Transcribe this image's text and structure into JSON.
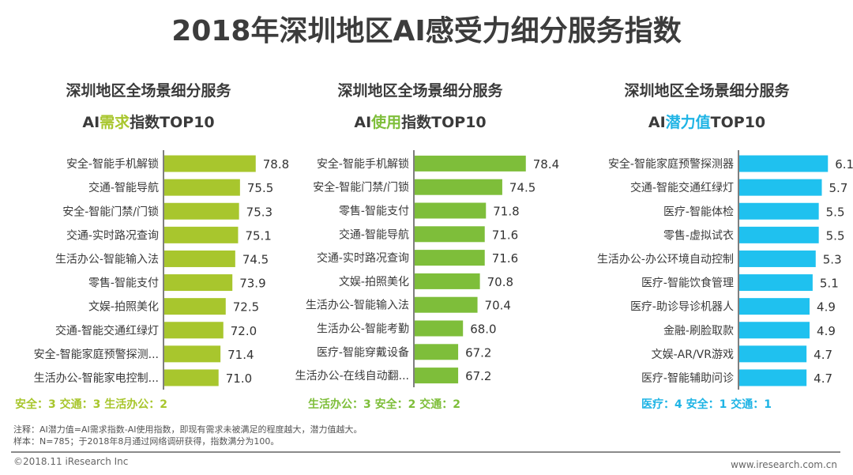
{
  "page": {
    "title": "2018年深圳地区AI感受力细分服务指数",
    "note_line1": "注释：AI潜力值=AI需求指数-AI使用指数，即现有需求未被满足的程度越大，潜力值越大。",
    "note_line2": "样本：N=785；于2018年8月通过网络调研获得，指数满分为100。",
    "copyright": "©2018.11 iResearch Inc",
    "website": "www.iresearch.com.cn"
  },
  "panels": [
    {
      "title_line1": "深圳地区全场景细分服务",
      "title_prefix": "AI",
      "title_highlight": "需求",
      "title_suffix": "指数TOP10",
      "summary": "安全：3  交通：3 生活办公：2",
      "color": "#a8c62d"
    },
    {
      "title_line1": "深圳地区全场景细分服务",
      "title_prefix": "AI",
      "title_highlight": "使用",
      "title_suffix": "指数TOP10",
      "summary": "生活办公：3  安全：2 交通：2",
      "color": "#7ebe3a"
    },
    {
      "title_line1": "深圳地区全场景细分服务",
      "title_prefix": "AI",
      "title_highlight": "潜力值",
      "title_suffix": "TOP10",
      "summary": "医疗：4  安全：1 交通：1",
      "color": "#1fc1ef"
    }
  ],
  "chart_data": [
    {
      "type": "bar",
      "orientation": "horizontal",
      "title": "深圳地区全场景细分服务 AI需求指数TOP10",
      "categories": [
        "安全-智能手机解锁",
        "交通-智能导航",
        "安全-智能门禁/门锁",
        "交通-实时路况查询",
        "生活办公-智能输入法",
        "零售-智能支付",
        "文娱-拍照美化",
        "交通-智能交通红绿灯",
        "安全-智能家庭预警探测...",
        "生活办公-智能家电控制..."
      ],
      "values": [
        78.8,
        75.5,
        75.3,
        75.1,
        74.5,
        73.9,
        72.5,
        72.0,
        71.4,
        71.0
      ],
      "value_labels": [
        "78.8",
        "75.5",
        "75.3",
        "75.1",
        "74.5",
        "73.9",
        "72.5",
        "72.0",
        "71.4",
        "71.0"
      ],
      "xlim": [
        59.6,
        80
      ],
      "grid": false,
      "xlabel": "",
      "ylabel": ""
    },
    {
      "type": "bar",
      "orientation": "horizontal",
      "title": "深圳地区全场景细分服务 AI使用指数TOP10",
      "categories": [
        "安全-智能手机解锁",
        "安全-智能门禁/门锁",
        "零售-智能支付",
        "交通-智能导航",
        "交通-实时路况查询",
        "文娱-拍照美化",
        "生活办公-智能输入法",
        "生活办公-智能考勤",
        "医疗-智能穿戴设备",
        "生活办公-在线自动翻..."
      ],
      "values": [
        78.4,
        74.5,
        71.8,
        71.6,
        71.6,
        70.8,
        70.4,
        68.0,
        67.2,
        67.2
      ],
      "value_labels": [
        "78.4",
        "74.5",
        "71.8",
        "71.6",
        "71.6",
        "70.8",
        "70.4",
        "68.0",
        "67.2",
        "67.2"
      ],
      "xlim": [
        60.0,
        80
      ],
      "grid": false,
      "xlabel": "",
      "ylabel": ""
    },
    {
      "type": "bar",
      "orientation": "horizontal",
      "title": "深圳地区全场景细分服务 AI潜力值TOP10",
      "categories": [
        "安全-智能家庭预警探测器",
        "交通-智能交通红绿灯",
        "医疗-智能体检",
        "零售-虚拟试衣",
        "生活办公-办公环境自动控制",
        "医疗-智能饮食管理",
        "医疗-助诊导诊机器人",
        "金融-刷脸取款",
        "文娱-AR/VR游戏",
        "医疗-智能辅助问诊"
      ],
      "values": [
        6.1,
        5.7,
        5.5,
        5.5,
        5.3,
        5.1,
        4.9,
        4.9,
        4.7,
        4.7
      ],
      "value_labels": [
        "6.1",
        "5.7",
        "5.5",
        "5.5",
        "5.3",
        "5.1",
        "4.9",
        "4.9",
        "4.7",
        "4.7"
      ],
      "xlim": [
        0.3,
        6.5
      ],
      "grid": false,
      "xlabel": "",
      "ylabel": ""
    }
  ]
}
